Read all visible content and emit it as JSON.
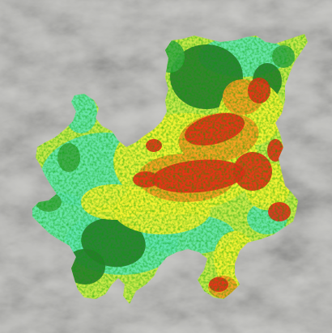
{
  "map": {
    "kind": "burn-severity raster over grayscale terrain hillshade",
    "colors": {
      "terrain_base": "#a9a9a6",
      "terrain_light": "#c9c9c6",
      "terrain_dark": "#8f8f8c",
      "class_dark_green": "#2a7a2e",
      "class_green": "#3fa746",
      "class_cyan_green": "#5fe3b0",
      "class_yellow_green": "#c8e84a",
      "class_yellow": "#f5f032",
      "class_orange": "#f59a22",
      "class_red": "#e52a18"
    },
    "legend_visible": false,
    "labels_visible": false
  }
}
